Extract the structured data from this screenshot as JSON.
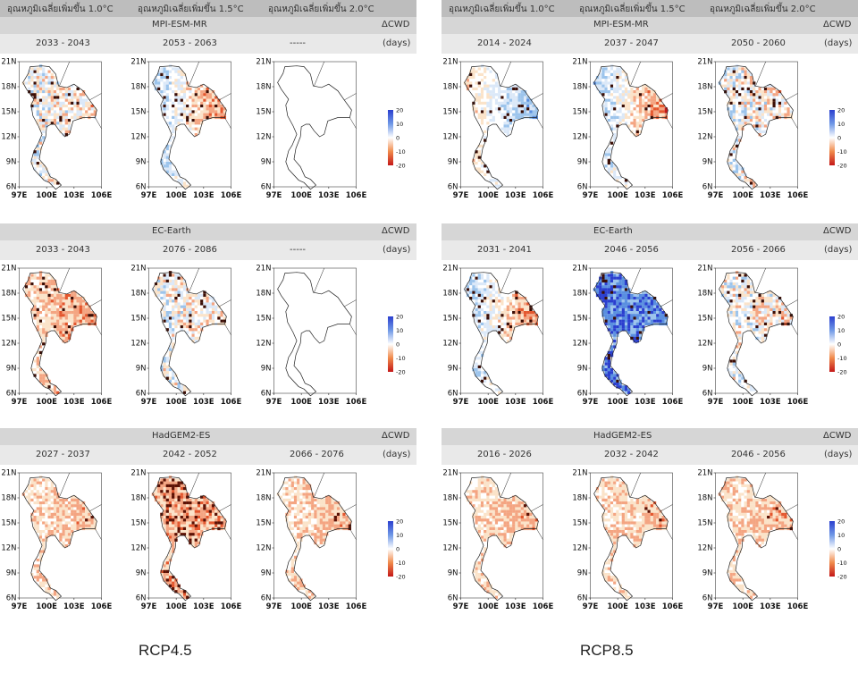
{
  "panels": [
    {
      "id": "rcp45",
      "scenario": "RCP4.5",
      "degree_headers": [
        "อุณหภูมิเฉลี่ยเพิ่มขึ้น 1.0°C",
        "อุณหภูมิเฉลี่ยเพิ่มขึ้น 1.5°C",
        "อุณหภูมิเฉลี่ยเพิ่มขึ้น 2.0°C"
      ],
      "rows": [
        {
          "model": "MPI-ESM-MR",
          "delta_label": "ΔCWD",
          "unit": "(days)",
          "periods": [
            "2033 - 2043",
            "2053 - 2063",
            "-----"
          ],
          "maps": [
            {
              "style": "mixed",
              "seed": 11
            },
            {
              "style": "dry_east",
              "seed": 12
            },
            {
              "style": "blank",
              "seed": 13
            }
          ]
        },
        {
          "model": "EC-Earth",
          "delta_label": "ΔCWD",
          "unit": "(days)",
          "periods": [
            "2033 - 2043",
            "2076 - 2086",
            "-----"
          ],
          "maps": [
            {
              "style": "dry",
              "seed": 21
            },
            {
              "style": "mixed",
              "seed": 22
            },
            {
              "style": "blank",
              "seed": 23
            }
          ]
        },
        {
          "model": "HadGEM2-ES",
          "delta_label": "ΔCWD",
          "unit": "(days)",
          "periods": [
            "2027 - 2037",
            "2042 - 2052",
            "2066 - 2076"
          ],
          "maps": [
            {
              "style": "stipple",
              "seed": 31
            },
            {
              "style": "stipple_heavy",
              "seed": 32
            },
            {
              "style": "stipple",
              "seed": 33
            }
          ]
        }
      ]
    },
    {
      "id": "rcp85",
      "scenario": "RCP8.5",
      "degree_headers": [
        "อุณหภูมิเฉลี่ยเพิ่มขึ้น 1.0°C",
        "อุณหภูมิเฉลี่ยเพิ่มขึ้น 1.5°C",
        "อุณหภูมิเฉลี่ยเพิ่มขึ้น 2.0°C"
      ],
      "rows": [
        {
          "model": "MPI-ESM-MR",
          "delta_label": "ΔCWD",
          "unit": "(days)",
          "periods": [
            "2014 - 2024",
            "2037 - 2047",
            "2050 - 2060"
          ],
          "maps": [
            {
              "style": "wet_east",
              "seed": 41
            },
            {
              "style": "dry_east",
              "seed": 42
            },
            {
              "style": "mixed",
              "seed": 43
            }
          ]
        },
        {
          "model": "EC-Earth",
          "delta_label": "ΔCWD",
          "unit": "(days)",
          "periods": [
            "2031 - 2041",
            "2046 - 2056",
            "2056 - 2066"
          ],
          "maps": [
            {
              "style": "dry_east",
              "seed": 51
            },
            {
              "style": "wet",
              "seed": 52
            },
            {
              "style": "mixed",
              "seed": 53
            }
          ]
        },
        {
          "model": "HadGEM2-ES",
          "delta_label": "ΔCWD",
          "unit": "(days)",
          "periods": [
            "2016 - 2026",
            "2032 - 2042",
            "2046 - 2056"
          ],
          "maps": [
            {
              "style": "stipple",
              "seed": 61
            },
            {
              "style": "stipple",
              "seed": 62
            },
            {
              "style": "stipple",
              "seed": 63
            }
          ]
        }
      ]
    }
  ],
  "map_axis": {
    "lat_labels": [
      "21N",
      "18N",
      "15N",
      "12N",
      "9N",
      "6N"
    ],
    "lon_labels": [
      "97E",
      "100E",
      "103E",
      "106E"
    ]
  },
  "colorbar": {
    "ticks": [
      "20",
      "10",
      "0",
      "-10",
      "-20"
    ],
    "colors": [
      "#2b3fcf",
      "#6f98e6",
      "#ffffff",
      "#f08a4b",
      "#c41818"
    ]
  },
  "colors": {
    "deg_header_bg": "#bdbdbd",
    "model_header_bg": "#d6d6d6",
    "period_header_bg": "#e9e9e9"
  }
}
